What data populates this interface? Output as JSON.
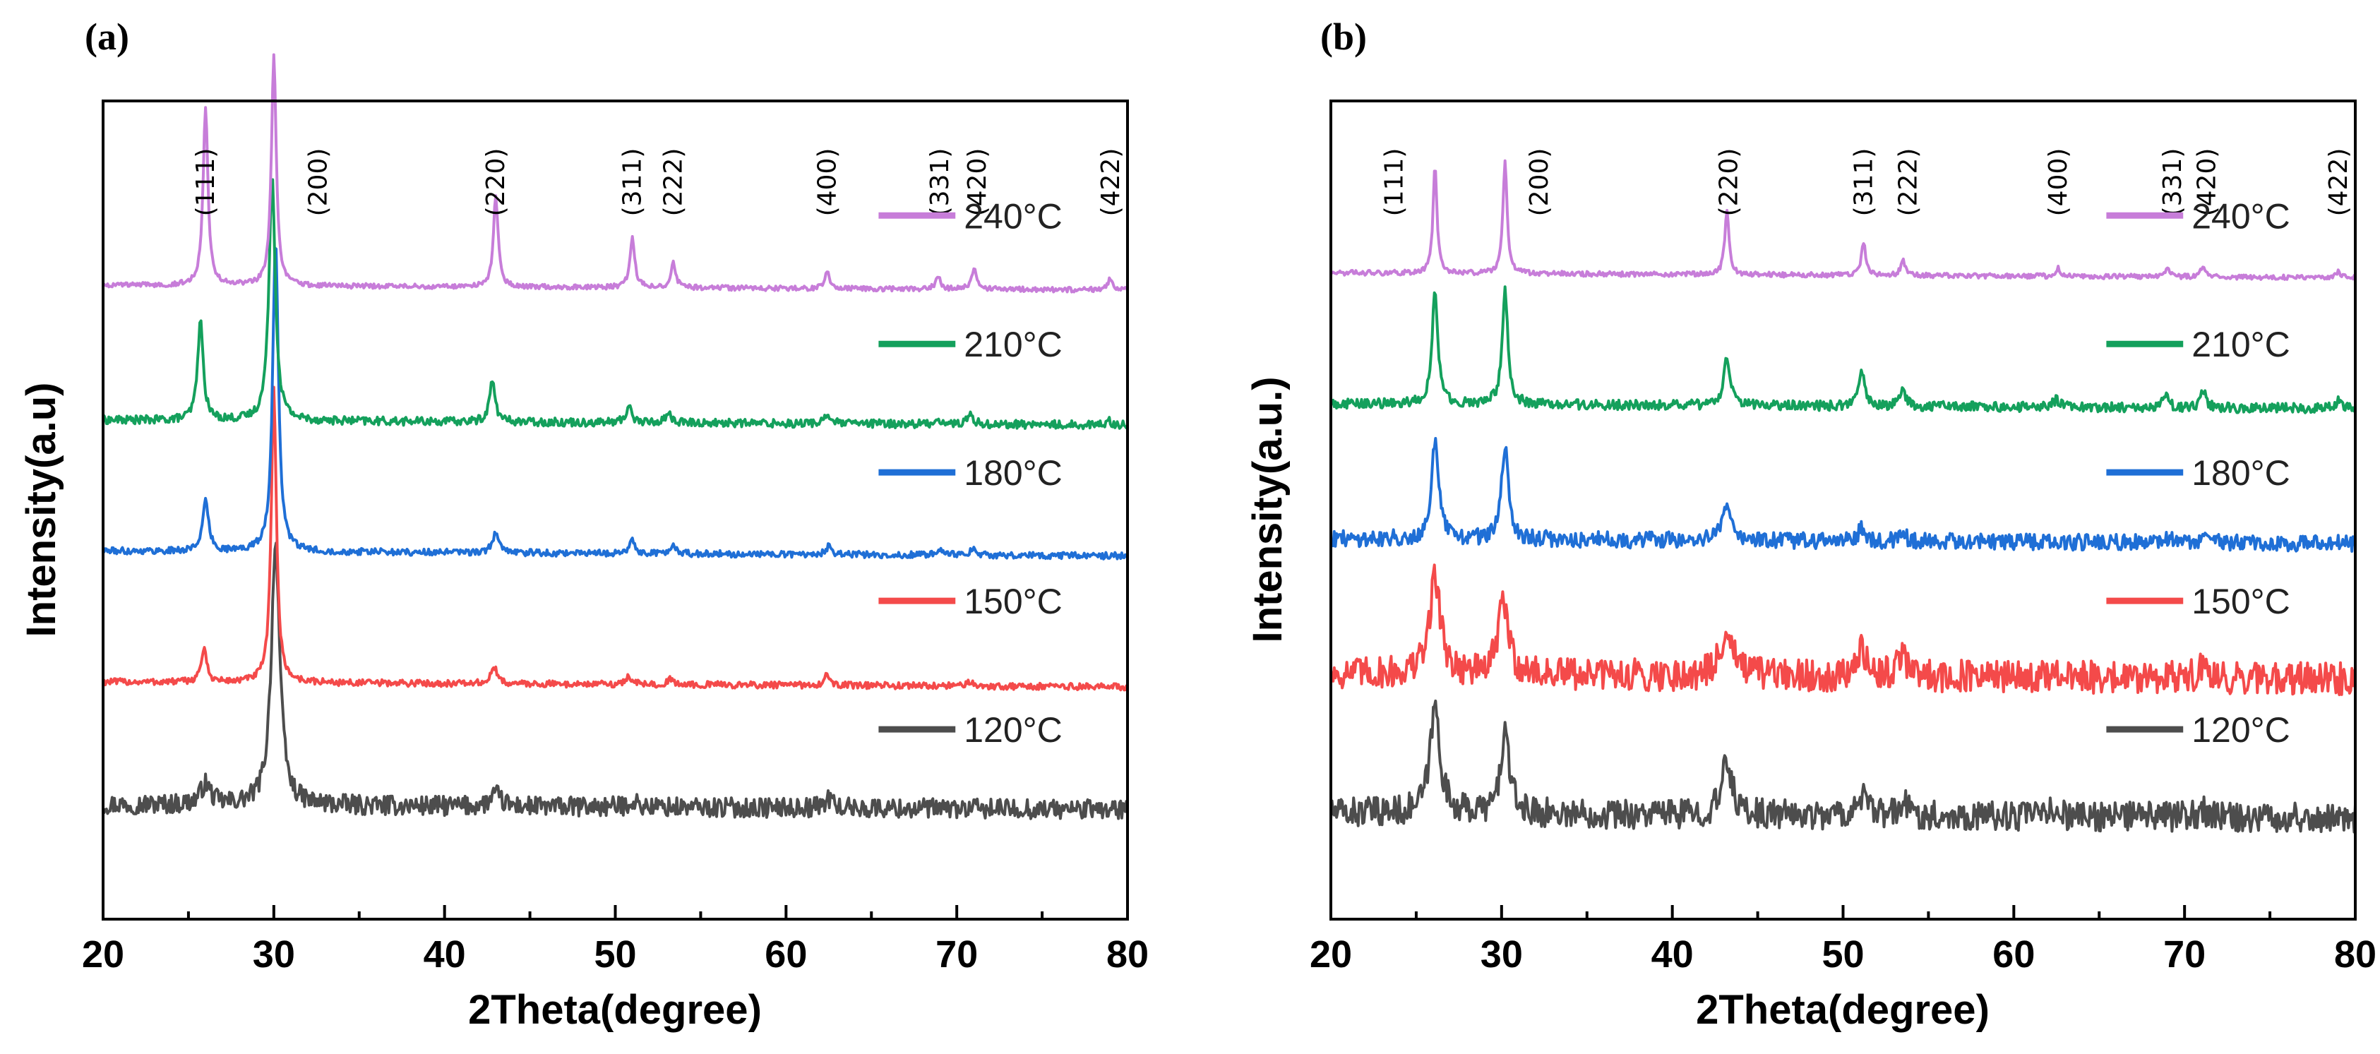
{
  "chart_data": [
    {
      "panel": "(a)",
      "type": "line",
      "xlabel": "2Theta(degree)",
      "ylabel": "Intensity(a.u)",
      "xlim": [
        20,
        80
      ],
      "xticks": [
        "20",
        "30",
        "40",
        "50",
        "60",
        "70",
        "80"
      ],
      "peak_labels": [
        {
          "label": "(111)",
          "x": 26.0
        },
        {
          "label": "(200)",
          "x": 32.6
        },
        {
          "label": "(220)",
          "x": 43.0
        },
        {
          "label": "(311)",
          "x": 51.0
        },
        {
          "label": "(222)",
          "x": 53.4
        },
        {
          "label": "(400)",
          "x": 62.4
        },
        {
          "label": "(331)",
          "x": 69.0
        },
        {
          "label": "(420)",
          "x": 71.2
        },
        {
          "label": "(422)",
          "x": 79.0
        }
      ],
      "series": [
        {
          "name": "120°C",
          "color": "#4d4d4d",
          "baseline": 0.14,
          "noise": 0.012,
          "peaks": [
            [
              26.0,
              0.025,
              0.35
            ],
            [
              30.1,
              0.32,
              0.3
            ],
            [
              43.0,
              0.015,
              0.35
            ],
            [
              51.0,
              0.008,
              0.3
            ],
            [
              62.5,
              0.012,
              0.3
            ]
          ]
        },
        {
          "name": "150°C",
          "color": "#f44a4a",
          "baseline": 0.29,
          "noise": 0.004,
          "peaks": [
            [
              25.9,
              0.04,
              0.2
            ],
            [
              30.0,
              0.36,
              0.18
            ],
            [
              42.9,
              0.02,
              0.22
            ],
            [
              50.8,
              0.01,
              0.2
            ],
            [
              53.2,
              0.006,
              0.2
            ],
            [
              62.4,
              0.012,
              0.2
            ],
            [
              70.7,
              0.006,
              0.2
            ]
          ]
        },
        {
          "name": "180°C",
          "color": "#1f6fd6",
          "baseline": 0.45,
          "noise": 0.004,
          "peaks": [
            [
              26.0,
              0.06,
              0.22
            ],
            [
              30.1,
              0.38,
              0.2
            ],
            [
              43.0,
              0.025,
              0.22
            ],
            [
              51.0,
              0.015,
              0.2
            ],
            [
              53.4,
              0.01,
              0.2
            ],
            [
              62.5,
              0.01,
              0.2
            ],
            [
              69.0,
              0.006,
              0.2
            ],
            [
              71.0,
              0.008,
              0.2
            ]
          ]
        },
        {
          "name": "210°C",
          "color": "#14a05c",
          "baseline": 0.61,
          "noise": 0.005,
          "peaks": [
            [
              25.7,
              0.12,
              0.2
            ],
            [
              29.9,
              0.3,
              0.22
            ],
            [
              42.8,
              0.05,
              0.2
            ],
            [
              50.8,
              0.02,
              0.2
            ],
            [
              53.1,
              0.012,
              0.2
            ],
            [
              62.4,
              0.012,
              0.2
            ],
            [
              68.9,
              0.006,
              0.2
            ],
            [
              70.8,
              0.012,
              0.2
            ],
            [
              78.9,
              0.005,
              0.2
            ]
          ]
        },
        {
          "name": "240°C",
          "color": "#c77dd9",
          "baseline": 0.775,
          "noise": 0.003,
          "peaks": [
            [
              26.0,
              0.22,
              0.17
            ],
            [
              30.0,
              0.28,
              0.17
            ],
            [
              43.0,
              0.11,
              0.17
            ],
            [
              51.0,
              0.06,
              0.17
            ],
            [
              53.4,
              0.03,
              0.17
            ],
            [
              62.4,
              0.02,
              0.17
            ],
            [
              68.9,
              0.015,
              0.17
            ],
            [
              71.0,
              0.025,
              0.17
            ],
            [
              79.0,
              0.015,
              0.17
            ]
          ]
        }
      ]
    },
    {
      "panel": "(b)",
      "type": "line",
      "xlabel": "2Theta(degree)",
      "ylabel": "Intensity(a.u.)",
      "xlim": [
        20,
        80
      ],
      "xticks": [
        "20",
        "30",
        "40",
        "50",
        "60",
        "70",
        "80"
      ],
      "peak_labels": [
        {
          "label": "(111)",
          "x": 23.7
        },
        {
          "label": "(200)",
          "x": 32.2
        },
        {
          "label": "(220)",
          "x": 43.3
        },
        {
          "label": "(311)",
          "x": 51.2
        },
        {
          "label": "(222)",
          "x": 53.8
        },
        {
          "label": "(400)",
          "x": 62.6
        },
        {
          "label": "(331)",
          "x": 69.3
        },
        {
          "label": "(420)",
          "x": 71.3
        },
        {
          "label": "(422)",
          "x": 79.0
        }
      ],
      "series": [
        {
          "name": "120°C",
          "color": "#4d4d4d",
          "baseline": 0.13,
          "noise": 0.018,
          "peaks": [
            [
              26.1,
              0.13,
              0.35
            ],
            [
              30.2,
              0.1,
              0.3
            ],
            [
              43.2,
              0.065,
              0.35
            ],
            [
              51.1,
              0.025,
              0.3
            ],
            [
              53.6,
              0.015,
              0.3
            ],
            [
              62.4,
              0.01,
              0.3
            ],
            [
              71.0,
              0.008,
              0.3
            ]
          ]
        },
        {
          "name": "150°C",
          "color": "#f44a4a",
          "baseline": 0.3,
          "noise": 0.02,
          "peaks": [
            [
              26.1,
              0.12,
              0.38
            ],
            [
              30.1,
              0.09,
              0.35
            ],
            [
              43.2,
              0.06,
              0.4
            ],
            [
              51.1,
              0.03,
              0.35
            ],
            [
              53.5,
              0.025,
              0.35
            ],
            [
              71.0,
              0.012,
              0.3
            ]
          ]
        },
        {
          "name": "180°C",
          "color": "#1f6fd6",
          "baseline": 0.465,
          "noise": 0.01,
          "peaks": [
            [
              26.1,
              0.12,
              0.25
            ],
            [
              30.2,
              0.11,
              0.25
            ],
            [
              43.2,
              0.05,
              0.28
            ],
            [
              51.1,
              0.015,
              0.25
            ],
            [
              53.5,
              0.01,
              0.25
            ],
            [
              69.0,
              0.006,
              0.25
            ],
            [
              71.1,
              0.008,
              0.25
            ]
          ]
        },
        {
          "name": "210°C",
          "color": "#14a05c",
          "baseline": 0.63,
          "noise": 0.006,
          "peaks": [
            [
              26.1,
              0.14,
              0.2
            ],
            [
              30.2,
              0.14,
              0.2
            ],
            [
              43.2,
              0.06,
              0.22
            ],
            [
              51.1,
              0.04,
              0.2
            ],
            [
              53.5,
              0.02,
              0.2
            ],
            [
              62.5,
              0.01,
              0.2
            ],
            [
              68.9,
              0.015,
              0.2
            ],
            [
              71.1,
              0.02,
              0.2
            ],
            [
              79.0,
              0.01,
              0.2
            ]
          ]
        },
        {
          "name": "240°C",
          "color": "#c77dd9",
          "baseline": 0.79,
          "noise": 0.003,
          "peaks": [
            [
              26.1,
              0.13,
              0.14
            ],
            [
              30.2,
              0.14,
              0.14
            ],
            [
              43.2,
              0.08,
              0.15
            ],
            [
              51.2,
              0.04,
              0.15
            ],
            [
              53.5,
              0.02,
              0.15
            ],
            [
              62.6,
              0.01,
              0.15
            ],
            [
              69.0,
              0.01,
              0.15
            ],
            [
              71.1,
              0.015,
              0.15
            ],
            [
              79.0,
              0.008,
              0.15
            ]
          ]
        }
      ]
    }
  ]
}
